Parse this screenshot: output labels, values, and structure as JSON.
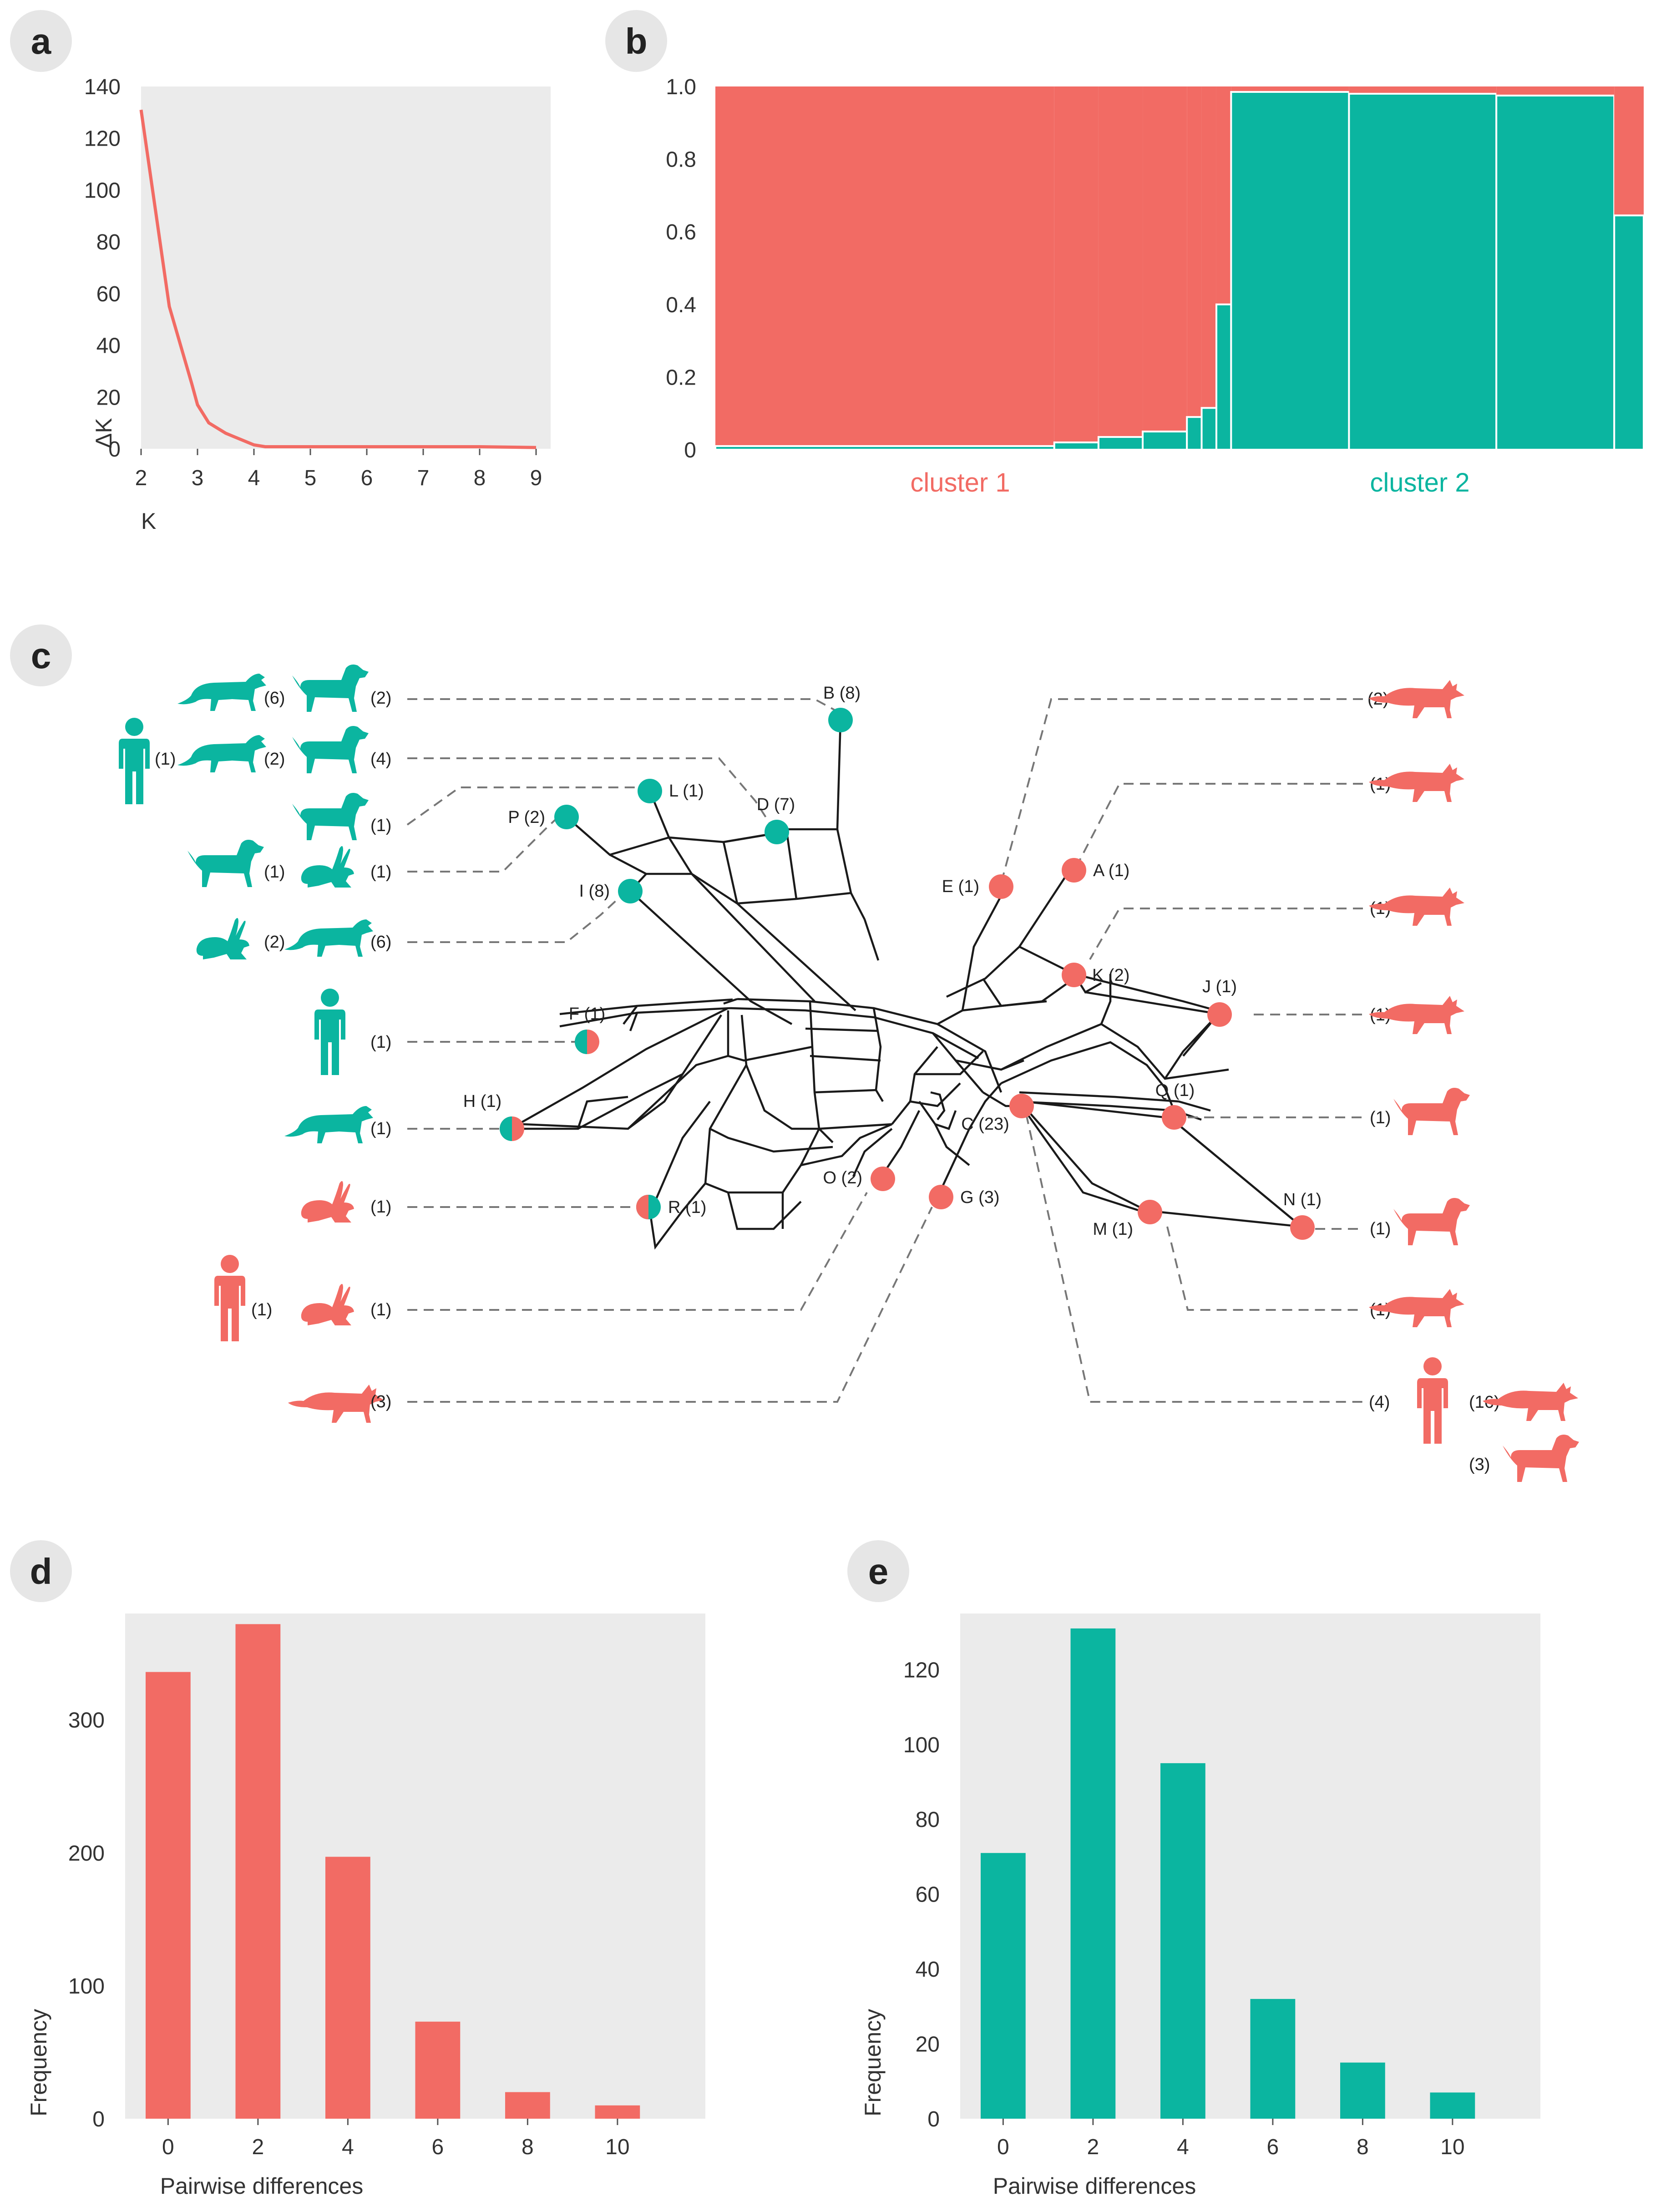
{
  "colors": {
    "cluster1": "#F26B64",
    "cluster2": "#0BB5A0",
    "panel_bg": "#EBEBEB",
    "badge_bg": "#E6E6E6",
    "edge": "#1a1a1a",
    "dash": "#777777"
  },
  "panels": {
    "a": "a",
    "b": "b",
    "c": "c",
    "d": "d",
    "e": "e"
  },
  "chart_data": [
    {
      "panel": "a",
      "type": "line",
      "title": "",
      "xlabel": "K",
      "ylabel": "ΔK",
      "xlim": [
        2,
        9
      ],
      "ylim": [
        0,
        140
      ],
      "xticks": [
        2,
        3,
        4,
        5,
        6,
        7,
        8,
        9
      ],
      "yticks": [
        0,
        20,
        40,
        60,
        80,
        100,
        120,
        140
      ],
      "series": [
        {
          "name": "ΔK",
          "x": [
            2,
            2.5,
            2.9,
            3,
            3.2,
            3.5,
            4,
            4.2,
            5,
            6,
            7,
            8,
            9
          ],
          "values": [
            131,
            55,
            25,
            17,
            10,
            6,
            1.5,
            0.8,
            0.8,
            0.8,
            0.8,
            0.8,
            0.5
          ]
        }
      ]
    },
    {
      "panel": "b",
      "type": "bar",
      "subtype": "stacked-proportion",
      "title": "",
      "xlabel": "",
      "ylabel": "",
      "ylim": [
        0,
        1
      ],
      "yticks": [
        "0",
        "0.2",
        "0.4",
        "0.6",
        "0.8",
        "1.0"
      ],
      "group_labels": [
        "cluster 1",
        "cluster 2"
      ],
      "widths": [
        23,
        3,
        3,
        3,
        1,
        1,
        1,
        8,
        10,
        8,
        2
      ],
      "cluster2_values": [
        0.01,
        0.02,
        0.035,
        0.05,
        0.09,
        0.115,
        0.4,
        0.985,
        0.98,
        0.975,
        0.645
      ]
    },
    {
      "panel": "d",
      "type": "bar",
      "title": "",
      "xlabel": "Pairwise differences",
      "ylabel": "Frequency",
      "categories": [
        "0",
        "2",
        "4",
        "6",
        "8",
        "10"
      ],
      "values": [
        336,
        372,
        197,
        73,
        20,
        10
      ],
      "ylim": [
        0,
        380
      ],
      "yticks": [
        0,
        100,
        200,
        300
      ]
    },
    {
      "panel": "e",
      "type": "bar",
      "title": "",
      "xlabel": "Pairwise differences",
      "ylabel": "Frequency",
      "categories": [
        "0",
        "2",
        "4",
        "6",
        "8",
        "10"
      ],
      "values": [
        71,
        131,
        95,
        32,
        15,
        7
      ],
      "ylim": [
        0,
        135
      ],
      "yticks": [
        0,
        20,
        40,
        60,
        80,
        100,
        120
      ]
    }
  ],
  "network": {
    "nodes": [
      {
        "id": "B",
        "label": "B (8)",
        "cluster": "c2"
      },
      {
        "id": "L",
        "label": "L (1)",
        "cluster": "c2"
      },
      {
        "id": "D",
        "label": "D (7)",
        "cluster": "c2"
      },
      {
        "id": "P",
        "label": "P (2)",
        "cluster": "c2"
      },
      {
        "id": "I",
        "label": "I (8)",
        "cluster": "c2"
      },
      {
        "id": "F",
        "label": "F (1)",
        "cluster": "mixed"
      },
      {
        "id": "H",
        "label": "H (1)",
        "cluster": "mixed"
      },
      {
        "id": "R",
        "label": "R (1)",
        "cluster": "mixed"
      },
      {
        "id": "E",
        "label": "E (1)",
        "cluster": "c1"
      },
      {
        "id": "A",
        "label": "A (1)",
        "cluster": "c1"
      },
      {
        "id": "K",
        "label": "K (2)",
        "cluster": "c1"
      },
      {
        "id": "J",
        "label": "J (1)",
        "cluster": "c1"
      },
      {
        "id": "Q",
        "label": "Q (1)",
        "cluster": "c1"
      },
      {
        "id": "C",
        "label": "C (23)",
        "cluster": "c1"
      },
      {
        "id": "O",
        "label": "O (2)",
        "cluster": "c1"
      },
      {
        "id": "G",
        "label": "G (3)",
        "cluster": "c1"
      },
      {
        "id": "M",
        "label": "M (1)",
        "cluster": "c1"
      },
      {
        "id": "N",
        "label": "N (1)",
        "cluster": "c1"
      }
    ],
    "left_hosts": [
      {
        "row": 1,
        "items": [
          {
            "icon": "wolf-icon",
            "count": "(6)"
          },
          {
            "icon": "dog-icon",
            "count": "(2)"
          }
        ],
        "cluster": "c2"
      },
      {
        "row": 2,
        "items": [
          {
            "icon": "human-icon",
            "count": "(1)"
          },
          {
            "icon": "wolf-icon",
            "count": "(2)"
          },
          {
            "icon": "dog-icon",
            "count": "(4)"
          }
        ],
        "cluster": "c2"
      },
      {
        "row": 3,
        "items": [
          {
            "icon": "dog-icon",
            "count": "(1)"
          }
        ],
        "cluster": "c2"
      },
      {
        "row": 4,
        "items": [
          {
            "icon": "dog-icon",
            "count": "(1)"
          },
          {
            "icon": "hare-icon",
            "count": "(1)"
          }
        ],
        "cluster": "c2"
      },
      {
        "row": 5,
        "items": [
          {
            "icon": "hare-icon",
            "count": "(2)"
          },
          {
            "icon": "wolf-icon",
            "count": "(6)"
          }
        ],
        "cluster": "c2"
      },
      {
        "row": 6,
        "items": [
          {
            "icon": "human-icon",
            "count": "(1)"
          }
        ],
        "cluster": "c2"
      },
      {
        "row": 7,
        "items": [
          {
            "icon": "wolf-icon",
            "count": "(1)"
          }
        ],
        "cluster": "c2"
      },
      {
        "row": 8,
        "items": [
          {
            "icon": "hare-icon",
            "count": "(1)"
          }
        ],
        "cluster": "c1"
      },
      {
        "row": 9,
        "items": [
          {
            "icon": "human-icon",
            "count": "(1)"
          },
          {
            "icon": "hare-icon",
            "count": "(1)"
          }
        ],
        "cluster": "c1"
      },
      {
        "row": 10,
        "items": [
          {
            "icon": "fox-icon",
            "count": "(3)"
          }
        ],
        "cluster": "c1"
      }
    ],
    "right_hosts": [
      {
        "row": 1,
        "count": "(2)",
        "icon": "fox-icon"
      },
      {
        "row": 2,
        "count": "(1)",
        "icon": "fox-icon"
      },
      {
        "row": 3,
        "count": "(1)",
        "icon": "fox-icon"
      },
      {
        "row": 4,
        "count": "(1)",
        "icon": "fox-icon"
      },
      {
        "row": 5,
        "count": "(1)",
        "icon": "dog-icon"
      },
      {
        "row": 6,
        "count": "(1)",
        "icon": "dog-icon"
      },
      {
        "row": 7,
        "count": "(1)",
        "icon": "fox-icon"
      },
      {
        "row": 8,
        "count": "(4)",
        "icon": "human-icon",
        "extra": [
          {
            "icon": "fox-icon",
            "count": "(16)"
          },
          {
            "icon": "dog-icon",
            "count": "(3)"
          }
        ]
      }
    ]
  }
}
